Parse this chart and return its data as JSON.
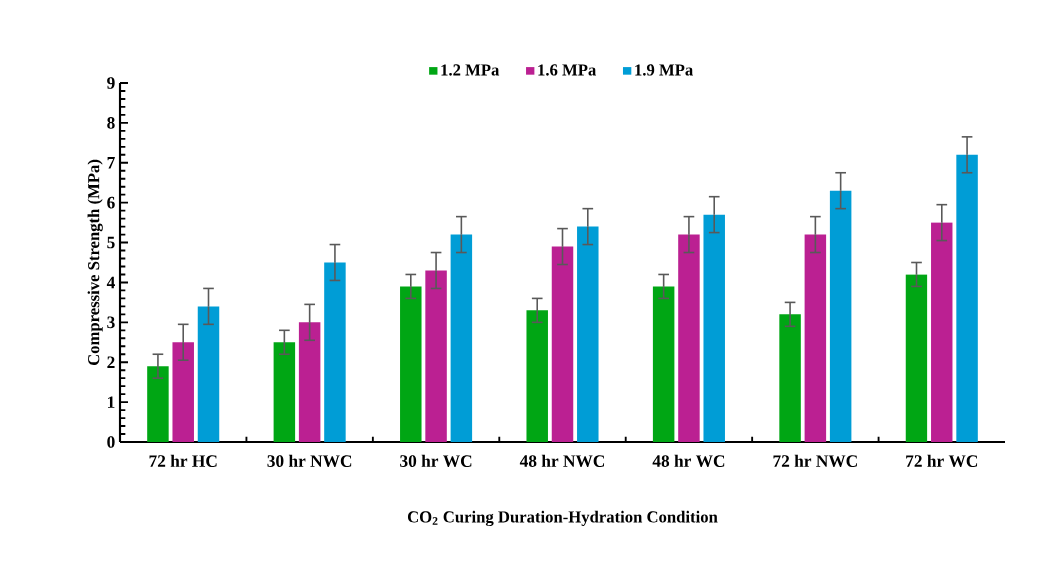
{
  "chart_data": {
    "type": "bar",
    "xlabel": "CO$_{2}$ Curing Duration-Hydration Condition",
    "ylabel": "Compressive Strength (MPa)",
    "categories": [
      "72 hr  HC",
      "30 hr  NWC",
      "30 hr  WC",
      "48 hr  NWC",
      "48 hr  WC",
      "72 hr  NWC",
      "72 hr  WC"
    ],
    "series": [
      {
        "name": "1.2 MPa",
        "color": "#00a614",
        "values": [
          1.9,
          2.5,
          3.9,
          3.3,
          3.9,
          3.2,
          4.2
        ],
        "errors": [
          0.3,
          0.3,
          0.3,
          0.3,
          0.3,
          0.3,
          0.3
        ]
      },
      {
        "name": "1.6 MPa",
        "color": "#bb2092",
        "values": [
          2.5,
          3.0,
          4.3,
          4.9,
          5.2,
          5.2,
          5.5
        ],
        "errors": [
          0.45,
          0.45,
          0.45,
          0.45,
          0.45,
          0.45,
          0.45
        ]
      },
      {
        "name": "1.9 MPa",
        "color": "#009dd6",
        "values": [
          3.4,
          4.5,
          5.2,
          5.4,
          5.7,
          6.3,
          7.2
        ],
        "errors": [
          0.45,
          0.45,
          0.45,
          0.45,
          0.45,
          0.45,
          0.45
        ]
      }
    ],
    "ylim": [
      0,
      9
    ],
    "yticks": [
      0,
      1,
      2,
      3,
      4,
      5,
      6,
      7,
      8,
      9
    ],
    "grid": false,
    "legend": "top"
  }
}
